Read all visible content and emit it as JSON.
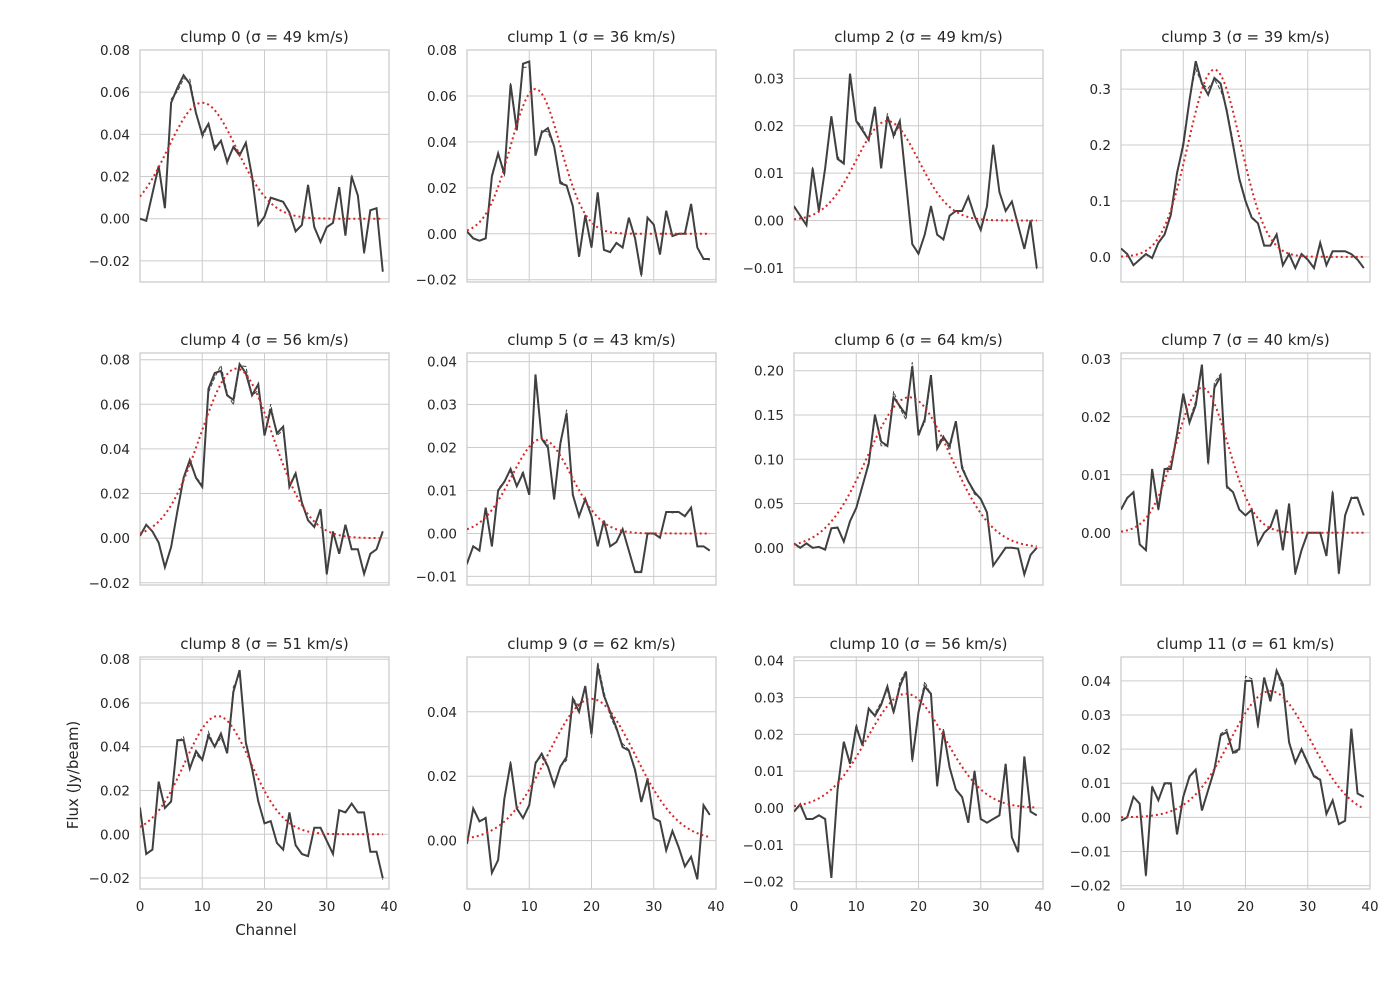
{
  "figure": {
    "ylabel": "Flux (Jy/beam)",
    "xlabel": "Channel"
  },
  "colors": {
    "data_line": "#404040",
    "model_line": "#d62728",
    "grid": "#cccccc",
    "spine": "#cccccc"
  },
  "chart_data": [
    {
      "type": "line",
      "title": "clump 0 (σ = 49 km/s)",
      "xlim": [
        0,
        40
      ],
      "ylim": [
        -0.03,
        0.08
      ],
      "xticks": [
        0,
        10,
        20,
        30,
        40
      ],
      "yticks": [
        -0.02,
        0,
        0.02,
        0.04,
        0.06,
        0.08
      ],
      "yticklabels": [
        "−0.02",
        "0.00",
        "0.02",
        "0.04",
        "0.06",
        "0.08"
      ],
      "model": {
        "amp": 0.055,
        "mu": 10,
        "sigma": 5.5
      },
      "values": [
        0.0,
        -0.001,
        0.012,
        0.025,
        0.005,
        0.055,
        0.062,
        0.068,
        0.064,
        0.05,
        0.04,
        0.045,
        0.033,
        0.037,
        0.027,
        0.034,
        0.03,
        0.036,
        0.02,
        -0.003,
        0.001,
        0.01,
        0.009,
        0.008,
        0.003,
        -0.006,
        -0.003,
        0.016,
        -0.004,
        -0.011,
        -0.004,
        -0.002,
        0.015,
        -0.008,
        0.02,
        0.011,
        -0.016,
        0.004,
        0.005,
        -0.025
      ]
    },
    {
      "type": "line",
      "title": "clump 1 (σ = 36 km/s)",
      "xlim": [
        0,
        40
      ],
      "ylim": [
        -0.021,
        0.08
      ],
      "xticks": [
        0,
        10,
        20,
        30,
        40
      ],
      "yticks": [
        -0.02,
        0,
        0.02,
        0.04,
        0.06,
        0.08
      ],
      "yticklabels": [
        "−0.02",
        "0.00",
        "0.02",
        "0.04",
        "0.06",
        "0.08"
      ],
      "model": {
        "amp": 0.063,
        "mu": 11,
        "sigma": 4.0
      },
      "values": [
        0.001,
        -0.002,
        -0.003,
        -0.002,
        0.025,
        0.035,
        0.026,
        0.065,
        0.045,
        0.074,
        0.075,
        0.034,
        0.044,
        0.046,
        0.038,
        0.022,
        0.021,
        0.012,
        -0.01,
        0.008,
        -0.006,
        0.018,
        -0.007,
        -0.008,
        -0.004,
        -0.006,
        0.007,
        -0.002,
        -0.018,
        0.007,
        0.004,
        -0.009,
        0.01,
        -0.001,
        0.0,
        0.0,
        0.013,
        -0.006,
        -0.011,
        -0.011
      ]
    },
    {
      "type": "line",
      "title": "clump 2 (σ = 49 km/s)",
      "xlim": [
        0,
        40
      ],
      "ylim": [
        -0.013,
        0.036
      ],
      "xticks": [
        0,
        10,
        20,
        30,
        40
      ],
      "yticks": [
        -0.01,
        0,
        0.01,
        0.02,
        0.03
      ],
      "yticklabels": [
        "−0.01",
        "0.00",
        "0.01",
        "0.02",
        "0.03"
      ],
      "model": {
        "amp": 0.021,
        "mu": 15,
        "sigma": 5.0
      },
      "values": [
        0.003,
        0.001,
        -0.001,
        0.011,
        0.002,
        0.011,
        0.022,
        0.013,
        0.012,
        0.031,
        0.021,
        0.019,
        0.017,
        0.024,
        0.011,
        0.022,
        0.018,
        0.021,
        0.008,
        -0.005,
        -0.007,
        -0.003,
        0.003,
        -0.003,
        -0.004,
        0.001,
        0.002,
        0.002,
        0.005,
        0.001,
        -0.002,
        0.003,
        0.016,
        0.006,
        0.002,
        0.004,
        -0.001,
        -0.006,
        0.0,
        -0.01
      ]
    },
    {
      "type": "line",
      "title": "clump 3 (σ = 39 km/s)",
      "xlim": [
        0,
        40
      ],
      "ylim": [
        -0.045,
        0.37
      ],
      "xticks": [
        0,
        10,
        20,
        30,
        40
      ],
      "yticks": [
        0,
        0.1,
        0.2,
        0.3
      ],
      "yticklabels": [
        "0.0",
        "0.1",
        "0.2",
        "0.3"
      ],
      "model": {
        "amp": 0.335,
        "mu": 15,
        "sigma": 4.2
      },
      "values": [
        0.015,
        0.005,
        -0.015,
        -0.005,
        0.005,
        -0.002,
        0.025,
        0.04,
        0.075,
        0.15,
        0.2,
        0.28,
        0.35,
        0.31,
        0.29,
        0.32,
        0.31,
        0.26,
        0.2,
        0.14,
        0.1,
        0.07,
        0.06,
        0.02,
        0.02,
        0.04,
        -0.015,
        0.005,
        -0.02,
        0.005,
        -0.005,
        -0.02,
        0.025,
        -0.015,
        0.01,
        0.01,
        0.01,
        0.005,
        -0.005,
        -0.02
      ]
    },
    {
      "type": "line",
      "title": "clump 4 (σ = 56 km/s)",
      "xlim": [
        0,
        40
      ],
      "ylim": [
        -0.021,
        0.083
      ],
      "xticks": [
        0,
        10,
        20,
        30,
        40
      ],
      "yticks": [
        -0.02,
        0,
        0.02,
        0.04,
        0.06,
        0.08
      ],
      "yticklabels": [
        "−0.02",
        "0.00",
        "0.02",
        "0.04",
        "0.06",
        "0.08"
      ],
      "model": {
        "amp": 0.076,
        "mu": 15.5,
        "sigma": 5.8
      },
      "values": [
        0.001,
        0.006,
        0.003,
        -0.002,
        -0.013,
        -0.004,
        0.012,
        0.027,
        0.035,
        0.027,
        0.023,
        0.067,
        0.074,
        0.075,
        0.064,
        0.062,
        0.078,
        0.074,
        0.064,
        0.069,
        0.046,
        0.058,
        0.047,
        0.05,
        0.023,
        0.029,
        0.016,
        0.008,
        0.005,
        0.013,
        -0.016,
        0.003,
        -0.007,
        0.006,
        -0.005,
        -0.005,
        -0.016,
        -0.007,
        -0.005,
        0.003
      ]
    },
    {
      "type": "line",
      "title": "clump 5 (σ = 43 km/s)",
      "xlim": [
        0,
        40
      ],
      "ylim": [
        -0.012,
        0.042
      ],
      "xticks": [
        0,
        10,
        20,
        30,
        40
      ],
      "yticks": [
        -0.01,
        0,
        0.01,
        0.02,
        0.03,
        0.04
      ],
      "yticklabels": [
        "−0.01",
        "0.00",
        "0.01",
        "0.02",
        "0.03",
        "0.04"
      ],
      "model": {
        "amp": 0.022,
        "mu": 12,
        "sigma": 4.8
      },
      "values": [
        -0.007,
        -0.003,
        -0.004,
        0.006,
        -0.003,
        0.01,
        0.012,
        0.015,
        0.011,
        0.014,
        0.009,
        0.037,
        0.022,
        0.02,
        0.008,
        0.021,
        0.028,
        0.009,
        0.004,
        0.008,
        0.004,
        -0.003,
        0.003,
        -0.003,
        -0.002,
        0.001,
        -0.004,
        -0.009,
        -0.009,
        0.0,
        0.0,
        -0.001,
        0.005,
        0.005,
        0.005,
        0.004,
        0.006,
        -0.003,
        -0.003,
        -0.004
      ]
    },
    {
      "type": "line",
      "title": "clump 6 (σ = 64 km/s)",
      "xlim": [
        0,
        40
      ],
      "ylim": [
        -0.042,
        0.22
      ],
      "xticks": [
        0,
        10,
        20,
        30,
        40
      ],
      "yticks": [
        0,
        0.05,
        0.1,
        0.15,
        0.2
      ],
      "yticklabels": [
        "0.00",
        "0.05",
        "0.10",
        "0.15",
        "0.20"
      ],
      "model": {
        "amp": 0.17,
        "mu": 18.5,
        "sigma": 6.7
      },
      "values": [
        0.005,
        0.0,
        0.005,
        0.0,
        0.001,
        -0.002,
        0.022,
        0.023,
        0.007,
        0.03,
        0.045,
        0.07,
        0.095,
        0.15,
        0.12,
        0.115,
        0.17,
        0.16,
        0.15,
        0.205,
        0.127,
        0.145,
        0.195,
        0.112,
        0.125,
        0.115,
        0.143,
        0.09,
        0.075,
        0.063,
        0.055,
        0.04,
        -0.02,
        -0.01,
        0.0,
        0.0,
        -0.001,
        -0.03,
        -0.008,
        0.0
      ]
    },
    {
      "type": "line",
      "title": "clump 7 (σ = 40 km/s)",
      "xlim": [
        0,
        40
      ],
      "ylim": [
        -0.009,
        0.031
      ],
      "xticks": [
        0,
        10,
        20,
        30,
        40
      ],
      "yticks": [
        0,
        0.01,
        0.02,
        0.03
      ],
      "yticklabels": [
        "0.00",
        "0.01",
        "0.02",
        "0.03"
      ],
      "model": {
        "amp": 0.025,
        "mu": 13,
        "sigma": 4.2
      },
      "values": [
        0.004,
        0.006,
        0.007,
        -0.002,
        -0.003,
        0.011,
        0.004,
        0.011,
        0.011,
        0.017,
        0.024,
        0.019,
        0.022,
        0.029,
        0.012,
        0.025,
        0.027,
        0.008,
        0.007,
        0.004,
        0.003,
        0.004,
        -0.002,
        0.0,
        0.001,
        0.004,
        -0.003,
        0.005,
        -0.007,
        -0.003,
        0.0,
        0.0,
        0.0,
        -0.004,
        0.007,
        -0.007,
        0.003,
        0.006,
        0.006,
        0.003
      ]
    },
    {
      "type": "line",
      "title": "clump 8 (σ = 51 km/s)",
      "xlim": [
        0,
        40
      ],
      "ylim": [
        -0.025,
        0.081
      ],
      "xticks": [
        0,
        10,
        20,
        30,
        40
      ],
      "yticks": [
        -0.02,
        0,
        0.02,
        0.04,
        0.06,
        0.08
      ],
      "yticklabels": [
        "−0.02",
        "0.00",
        "0.02",
        "0.04",
        "0.06",
        "0.08"
      ],
      "model": {
        "amp": 0.054,
        "mu": 12.5,
        "sigma": 5.3
      },
      "values": [
        0.012,
        -0.009,
        -0.007,
        0.024,
        0.012,
        0.015,
        0.043,
        0.043,
        0.03,
        0.038,
        0.034,
        0.045,
        0.04,
        0.046,
        0.037,
        0.065,
        0.075,
        0.042,
        0.03,
        0.015,
        0.005,
        0.006,
        -0.004,
        -0.007,
        0.01,
        -0.005,
        -0.009,
        -0.01,
        0.003,
        0.003,
        -0.003,
        -0.009,
        0.011,
        0.01,
        0.014,
        0.01,
        0.01,
        -0.008,
        -0.008,
        -0.02
      ]
    },
    {
      "type": "line",
      "title": "clump 9 (σ = 62 km/s)",
      "xlim": [
        0,
        40
      ],
      "ylim": [
        -0.015,
        0.057
      ],
      "xticks": [
        0,
        10,
        20,
        30,
        40
      ],
      "yticks": [
        0,
        0.02,
        0.04
      ],
      "yticklabels": [
        "0.00",
        "0.02",
        "0.04"
      ],
      "model": {
        "amp": 0.044,
        "mu": 20,
        "sigma": 7.0
      },
      "values": [
        -0.001,
        0.01,
        0.006,
        0.007,
        -0.01,
        -0.006,
        0.013,
        0.024,
        0.01,
        0.007,
        0.011,
        0.024,
        0.027,
        0.023,
        0.017,
        0.023,
        0.026,
        0.044,
        0.04,
        0.048,
        0.033,
        0.054,
        0.045,
        0.04,
        0.035,
        0.029,
        0.028,
        0.022,
        0.012,
        0.019,
        0.007,
        0.006,
        -0.003,
        0.003,
        -0.002,
        -0.008,
        -0.005,
        -0.012,
        0.011,
        0.008
      ]
    },
    {
      "type": "line",
      "title": "clump 10 (σ = 56 km/s)",
      "xlim": [
        0,
        40
      ],
      "ylim": [
        -0.022,
        0.041
      ],
      "xticks": [
        0,
        10,
        20,
        30,
        40
      ],
      "yticks": [
        -0.02,
        -0.01,
        0,
        0.01,
        0.02,
        0.03,
        0.04
      ],
      "yticklabels": [
        "−0.02",
        "−0.01",
        "0.00",
        "0.01",
        "0.02",
        "0.03",
        "0.04"
      ],
      "model": {
        "amp": 0.031,
        "mu": 18,
        "sigma": 6.3
      },
      "values": [
        -0.001,
        0.001,
        -0.003,
        -0.003,
        -0.002,
        -0.003,
        -0.019,
        0.005,
        0.018,
        0.012,
        0.022,
        0.017,
        0.027,
        0.025,
        0.028,
        0.033,
        0.026,
        0.033,
        0.037,
        0.013,
        0.026,
        0.033,
        0.031,
        0.006,
        0.021,
        0.011,
        0.005,
        0.003,
        -0.004,
        0.01,
        -0.003,
        -0.004,
        -0.003,
        -0.002,
        0.012,
        -0.008,
        -0.012,
        0.014,
        -0.001,
        -0.002
      ]
    },
    {
      "type": "line",
      "title": "clump 11 (σ = 61 km/s)",
      "xlim": [
        0,
        40
      ],
      "ylim": [
        -0.021,
        0.047
      ],
      "xticks": [
        0,
        10,
        20,
        30,
        40
      ],
      "yticks": [
        -0.02,
        -0.01,
        0,
        0.01,
        0.02,
        0.03,
        0.04
      ],
      "yticklabels": [
        "−0.02",
        "−0.01",
        "0.00",
        "0.01",
        "0.02",
        "0.03",
        "0.04"
      ],
      "model": {
        "amp": 0.037,
        "mu": 24,
        "sigma": 6.5
      },
      "values": [
        -0.001,
        0.0,
        0.006,
        0.004,
        -0.017,
        0.009,
        0.005,
        0.01,
        0.01,
        -0.005,
        0.006,
        0.012,
        0.014,
        0.002,
        0.008,
        0.014,
        0.024,
        0.025,
        0.019,
        0.02,
        0.04,
        0.04,
        0.027,
        0.041,
        0.034,
        0.043,
        0.039,
        0.022,
        0.016,
        0.02,
        0.016,
        0.012,
        0.011,
        0.001,
        0.005,
        -0.002,
        -0.001,
        0.026,
        0.007,
        0.006
      ]
    }
  ]
}
